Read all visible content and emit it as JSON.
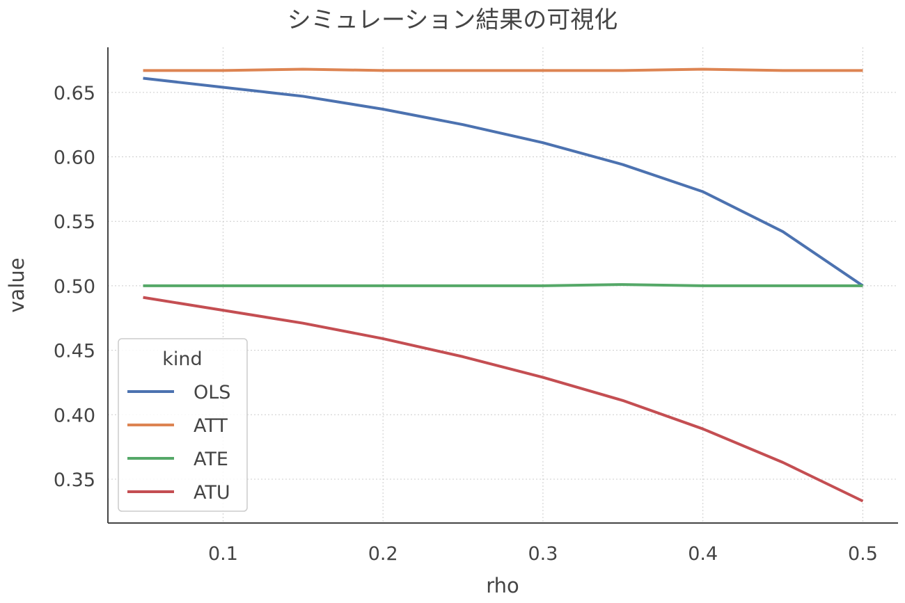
{
  "chart_data": {
    "type": "line",
    "title": "シミュレーション結果の可視化",
    "xlabel": "rho",
    "ylabel": "value",
    "x": [
      0.05,
      0.1,
      0.15,
      0.2,
      0.25,
      0.3,
      0.35,
      0.4,
      0.45,
      0.5
    ],
    "xlim": [
      0.028,
      0.522
    ],
    "ylim": [
      0.316,
      0.685
    ],
    "xticks": [
      0.1,
      0.2,
      0.3,
      0.4,
      0.5
    ],
    "xtick_labels": [
      "0.1",
      "0.2",
      "0.3",
      "0.4",
      "0.5"
    ],
    "yticks": [
      0.35,
      0.4,
      0.45,
      0.5,
      0.55,
      0.6,
      0.65
    ],
    "ytick_labels": [
      "0.35",
      "0.40",
      "0.45",
      "0.50",
      "0.55",
      "0.60",
      "0.65"
    ],
    "grid": true,
    "legend": {
      "title": "kind",
      "placement": "lower-left"
    },
    "series": [
      {
        "name": "OLS",
        "color": "#4c72b0",
        "values": [
          0.661,
          0.654,
          0.647,
          0.637,
          0.625,
          0.611,
          0.594,
          0.573,
          0.542,
          0.5
        ]
      },
      {
        "name": "ATT",
        "color": "#dd8452",
        "values": [
          0.667,
          0.667,
          0.668,
          0.667,
          0.667,
          0.667,
          0.667,
          0.668,
          0.667,
          0.667
        ]
      },
      {
        "name": "ATE",
        "color": "#55a868",
        "values": [
          0.5,
          0.5,
          0.5,
          0.5,
          0.5,
          0.5,
          0.501,
          0.5,
          0.5,
          0.5
        ]
      },
      {
        "name": "ATU",
        "color": "#c44e52",
        "values": [
          0.491,
          0.481,
          0.471,
          0.459,
          0.445,
          0.429,
          0.411,
          0.389,
          0.363,
          0.333
        ]
      }
    ]
  }
}
